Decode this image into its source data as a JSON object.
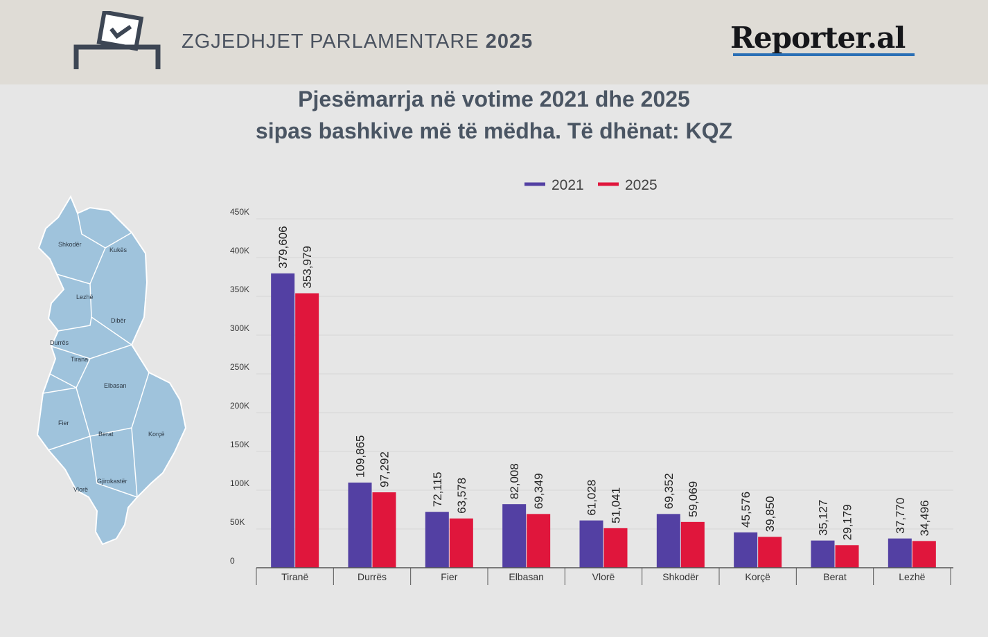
{
  "header": {
    "title_light": "ZGJEDHJET PARLAMENTARE",
    "title_bold": "2025",
    "brand": "Reporter.al",
    "icon": "ballot-box-icon"
  },
  "map": {
    "icon": "albania-map",
    "labels": [
      "Shkodër",
      "Kukës",
      "Lezhë",
      "Dibër",
      "Durrës",
      "Tirana",
      "Elbasan",
      "Fier",
      "Berat",
      "Korçë",
      "Gjirokastër",
      "Vlorë"
    ]
  },
  "colors": {
    "s2021": "#5340a3",
    "s2025": "#e0163c",
    "axis": "#555555",
    "grid": "#d6d6d6"
  },
  "chart_data": {
    "type": "bar",
    "title_line1": "Pjesëmarrja në votime 2021 dhe 2025",
    "title_line2": "sipas bashkive më të mëdha. Të dhënat: KQZ",
    "categories": [
      "Tiranë",
      "Durrës",
      "Fier",
      "Elbasan",
      "Vlorë",
      "Shkodër",
      "Korçë",
      "Berat",
      "Lezhë"
    ],
    "series": [
      {
        "name": "2021",
        "values": [
          379606,
          109865,
          72115,
          82008,
          61028,
          69352,
          45576,
          35127,
          37770
        ],
        "labels": [
          "379,606",
          "109,865",
          "72,115",
          "82,008",
          "61,028",
          "69,352",
          "45,576",
          "35,127",
          "37,770"
        ]
      },
      {
        "name": "2025",
        "values": [
          353979,
          97292,
          63578,
          69349,
          51041,
          59069,
          39850,
          29179,
          34496
        ],
        "labels": [
          "353,979",
          "97,292",
          "63,578",
          "69,349",
          "51,041",
          "59,069",
          "39,850",
          "29,179",
          "34,496"
        ]
      }
    ],
    "yticks": [
      0,
      50000,
      100000,
      150000,
      200000,
      250000,
      300000,
      350000,
      400000,
      450000
    ],
    "ytick_labels": [
      "0",
      "50K",
      "100K",
      "150K",
      "200K",
      "250K",
      "300K",
      "350K",
      "400K",
      "450K"
    ],
    "ylim": [
      0,
      450000
    ],
    "grid": true,
    "legend": "top-center"
  }
}
